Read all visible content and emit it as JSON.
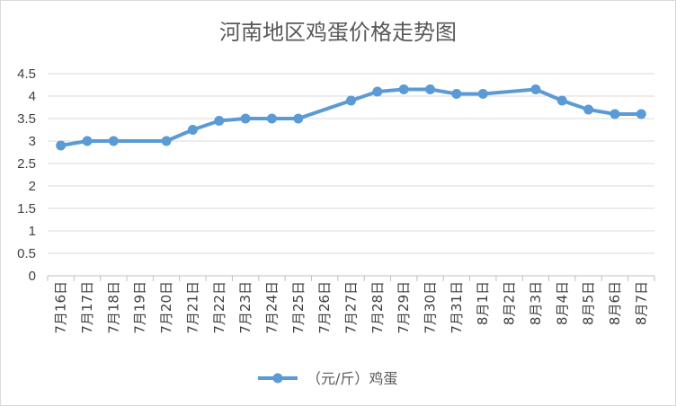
{
  "chart_data": {
    "type": "line",
    "title": "河南地区鸡蛋价格走势图",
    "xlabel": "",
    "ylabel": "",
    "ylim": [
      0,
      4.5
    ],
    "yticks": [
      0,
      0.5,
      1,
      1.5,
      2,
      2.5,
      3,
      3.5,
      4,
      4.5
    ],
    "grid": true,
    "legend_position": "bottom",
    "categories": [
      "7月16日",
      "7月17日",
      "7月18日",
      "7月19日",
      "7月20日",
      "7月21日",
      "7月22日",
      "7月23日",
      "7月24日",
      "7月25日",
      "7月26日",
      "7月27日",
      "7月28日",
      "7月29日",
      "7月30日",
      "7月31日",
      "8月1日",
      "8月2日",
      "8月3日",
      "8月4日",
      "8月5日",
      "8月6日",
      "8月7日"
    ],
    "series": [
      {
        "name": "（元/斤）鸡蛋",
        "color": "#5b9bd5",
        "values": [
          2.9,
          3.0,
          3.0,
          null,
          3.0,
          3.25,
          3.45,
          3.5,
          3.5,
          3.5,
          null,
          3.9,
          4.1,
          4.15,
          4.15,
          4.05,
          4.05,
          null,
          4.15,
          3.9,
          3.7,
          3.6,
          3.6
        ]
      }
    ]
  }
}
